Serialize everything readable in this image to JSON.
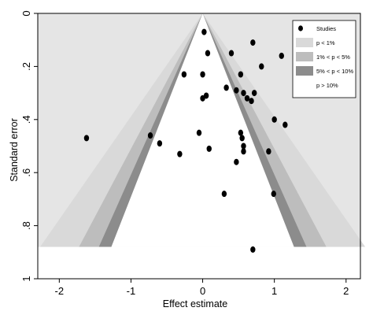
{
  "chart_data": {
    "type": "scatter",
    "subtype": "contour-enhanced funnel plot",
    "title": "",
    "xlabel": "Effect estimate",
    "ylabel": "Standard error",
    "xlim": [
      -2.3,
      2.2
    ],
    "ylim": [
      0,
      1
    ],
    "y_axis_reversed": true,
    "x_ticks": [
      -2,
      -1,
      0,
      1,
      2
    ],
    "x_tick_labels": [
      "-2",
      "-1",
      "0",
      "1",
      "2"
    ],
    "y_ticks": [
      0,
      0.2,
      0.4,
      0.6,
      0.8,
      1
    ],
    "y_tick_labels": [
      "0",
      ".2",
      ".4",
      ".6",
      ".8",
      "1"
    ],
    "funnel_max_se": 0.88,
    "contours": [
      {
        "label": "p < 1%",
        "z": 2.576,
        "color": "#d9d9d9"
      },
      {
        "label": "1% < p < 5%",
        "z": 1.96,
        "color": "#bdbdbd"
      },
      {
        "label": "5% < p < 10%",
        "z": 1.645,
        "color": "#8c8c8c"
      },
      {
        "label": "p > 10%",
        "z": 0,
        "color": "#ffffff"
      }
    ],
    "outer_background_color": "#e5e5e5",
    "legend": {
      "placement": "top-right",
      "entries": [
        "Studies",
        "p < 1%",
        "1% < p < 5%",
        "5% < p < 10%",
        "p > 10%"
      ]
    },
    "series": [
      {
        "name": "Studies",
        "color": "#000000",
        "points": [
          {
            "x": 0.02,
            "y": 0.07
          },
          {
            "x": 0.7,
            "y": 0.11
          },
          {
            "x": 0.07,
            "y": 0.15
          },
          {
            "x": 0.4,
            "y": 0.15
          },
          {
            "x": 1.1,
            "y": 0.16
          },
          {
            "x": 0.82,
            "y": 0.2
          },
          {
            "x": -0.26,
            "y": 0.23
          },
          {
            "x": 0.0,
            "y": 0.23
          },
          {
            "x": 0.53,
            "y": 0.23
          },
          {
            "x": 0.33,
            "y": 0.28
          },
          {
            "x": 0.47,
            "y": 0.29
          },
          {
            "x": 0.57,
            "y": 0.3
          },
          {
            "x": 0.72,
            "y": 0.3
          },
          {
            "x": 0.05,
            "y": 0.31
          },
          {
            "x": 0.0,
            "y": 0.32
          },
          {
            "x": 0.62,
            "y": 0.32
          },
          {
            "x": 0.68,
            "y": 0.33
          },
          {
            "x": 1.0,
            "y": 0.4
          },
          {
            "x": 1.15,
            "y": 0.42
          },
          {
            "x": -0.05,
            "y": 0.45
          },
          {
            "x": 0.53,
            "y": 0.45
          },
          {
            "x": -0.73,
            "y": 0.46
          },
          {
            "x": 0.55,
            "y": 0.47
          },
          {
            "x": -1.62,
            "y": 0.47
          },
          {
            "x": -0.6,
            "y": 0.49
          },
          {
            "x": 0.57,
            "y": 0.5
          },
          {
            "x": 0.09,
            "y": 0.51
          },
          {
            "x": 0.57,
            "y": 0.52
          },
          {
            "x": 0.92,
            "y": 0.52
          },
          {
            "x": -0.32,
            "y": 0.53
          },
          {
            "x": 0.47,
            "y": 0.56
          },
          {
            "x": 0.3,
            "y": 0.68
          },
          {
            "x": 0.99,
            "y": 0.68
          },
          {
            "x": 0.7,
            "y": 0.89
          }
        ]
      }
    ]
  }
}
